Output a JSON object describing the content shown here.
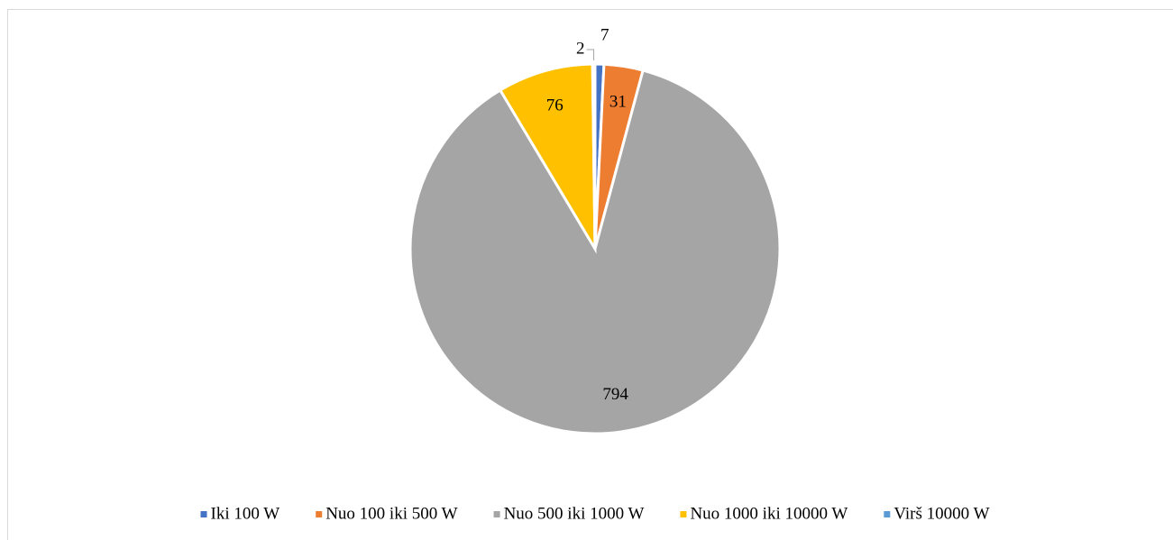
{
  "chart_data": {
    "type": "pie",
    "categories": [
      "Iki 100 W",
      "Nuo 100 iki 500 W",
      "Nuo 500 iki 1000 W",
      "Nuo 1000 iki 10000 W",
      "Virš 10000 W"
    ],
    "values": [
      7,
      31,
      794,
      76,
      2
    ],
    "colors": [
      "#4472c4",
      "#ed7d31",
      "#a5a5a5",
      "#ffc000",
      "#5b9bd5"
    ],
    "legend": "bottom"
  }
}
